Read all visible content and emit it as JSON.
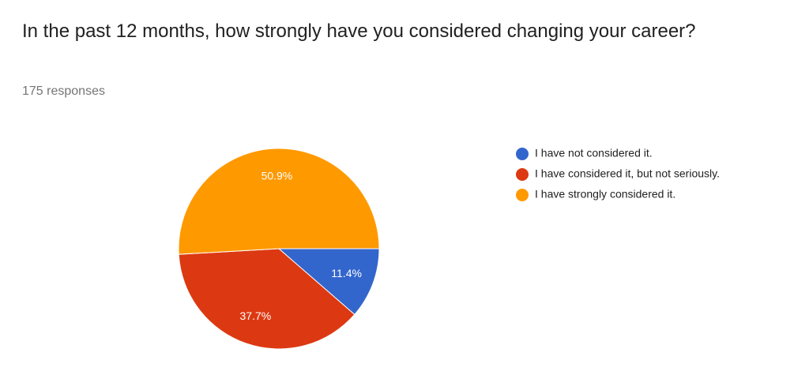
{
  "chart_data": {
    "type": "pie",
    "title": "In the past 12 months, how strongly have you considered changing your career?",
    "subtitle": "175 responses",
    "categories": [
      "I have not considered it.",
      "I have considered it, but not seriously.",
      "I have strongly considered it."
    ],
    "values": [
      11.4,
      37.7,
      50.9
    ],
    "value_labels": [
      "11.4%",
      "37.7%",
      "50.9%"
    ],
    "colors": [
      "#3366cc",
      "#dc3912",
      "#ff9900"
    ],
    "legend": "right"
  }
}
